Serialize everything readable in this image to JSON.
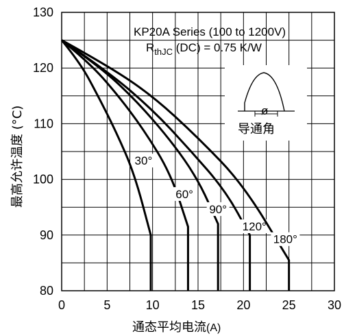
{
  "chart_data": {
    "type": "line",
    "title_line1": "KP20A Series (100 to 1200V)",
    "title_line2_prefix": "R",
    "title_line2_sub": "thJC",
    "title_line2_suffix": " (DC) = 0.75 K/W",
    "xlabel": "通态平均电流",
    "xlabel_unit": "(A)",
    "ylabel": "最高允许温度 (°C)",
    "xlim": [
      0,
      30
    ],
    "ylim": [
      80,
      130
    ],
    "xticks": [
      0,
      5,
      10,
      15,
      20,
      25,
      30
    ],
    "yticks": [
      80,
      90,
      100,
      110,
      120,
      130
    ],
    "grid": true,
    "inset_label": "导通角",
    "inset_symbol": "ø",
    "series": [
      {
        "name": "30°",
        "x": [
          0,
          2,
          4,
          6,
          8,
          9.8,
          9.8
        ],
        "y": [
          125,
          121,
          115,
          108.5,
          101,
          90,
          80
        ]
      },
      {
        "name": "60°",
        "x": [
          0,
          3,
          6,
          9,
          12,
          13.9,
          13.9
        ],
        "y": [
          125,
          121,
          115.5,
          109,
          101,
          91.5,
          80
        ]
      },
      {
        "name": "90°",
        "x": [
          0,
          4,
          8,
          12,
          15,
          17.2,
          17.2
        ],
        "y": [
          125,
          120.5,
          114.5,
          107,
          100,
          92,
          80
        ]
      },
      {
        "name": "120°",
        "x": [
          0,
          5,
          10,
          14,
          18,
          20.7,
          20.7
        ],
        "y": [
          125,
          119.5,
          112.5,
          105.5,
          98,
          90,
          80
        ]
      },
      {
        "name": "180°",
        "x": [
          0,
          5,
          10,
          15,
          20,
          25,
          25
        ],
        "y": [
          125,
          120.5,
          115,
          107.5,
          99,
          85.5,
          80
        ]
      }
    ]
  }
}
